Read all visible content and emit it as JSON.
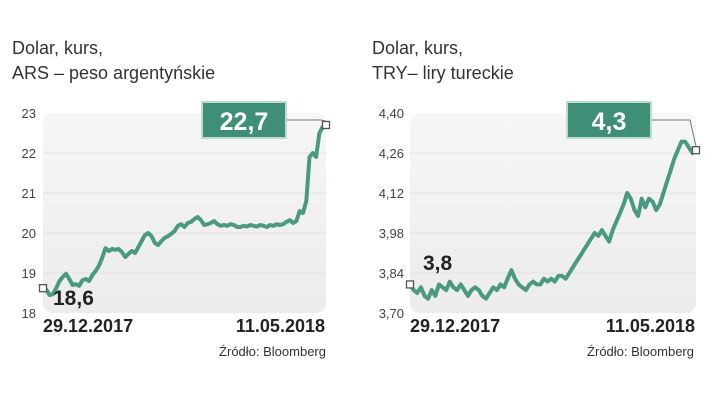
{
  "colors": {
    "line": "#4a9a82",
    "callout": "#3f8f78",
    "plot_bg_top": "#f6f6f6",
    "plot_bg_bottom": "#ececec"
  },
  "chart_data": [
    {
      "type": "line",
      "title_line1": "Dolar, kurs,",
      "title_line2": "ARS – peso argentyńskie",
      "source": "Źródło: Bloomberg",
      "yticks": [
        "18",
        "19",
        "20",
        "21",
        "22",
        "23"
      ],
      "ylim": [
        18,
        23
      ],
      "xlabel_start": "29.12.2017",
      "xlabel_end": "11.05.2018",
      "start_label": "18,6",
      "end_label": "22,7",
      "start_value": 18.6,
      "end_value": 22.7,
      "series": [
        {
          "values": [
            18.62,
            18.58,
            18.45,
            18.47,
            18.62,
            18.8,
            18.9,
            18.98,
            18.85,
            18.7,
            18.72,
            18.68,
            18.82,
            18.85,
            18.8,
            18.95,
            19.05,
            19.18,
            19.38,
            19.62,
            19.55,
            19.6,
            19.58,
            19.6,
            19.52,
            19.4,
            19.48,
            19.55,
            19.5,
            19.65,
            19.8,
            19.95,
            20.0,
            19.92,
            19.75,
            19.7,
            19.8,
            19.88,
            19.92,
            19.98,
            20.05,
            20.18,
            20.22,
            20.15,
            20.25,
            20.28,
            20.35,
            20.4,
            20.32,
            20.2,
            20.22,
            20.25,
            20.3,
            20.22,
            20.18,
            20.2,
            20.18,
            20.22,
            20.2,
            20.15,
            20.15,
            20.18,
            20.16,
            20.2,
            20.18,
            20.16,
            20.2,
            20.18,
            20.15,
            20.2,
            20.18,
            20.22,
            20.2,
            20.22,
            20.28,
            20.32,
            20.25,
            20.3,
            20.55,
            20.5,
            20.8,
            21.9,
            22.0,
            21.9,
            22.5,
            22.65,
            22.7
          ]
        }
      ]
    },
    {
      "type": "line",
      "title_line1": "Dolar, kurs,",
      "title_line2": "TRY– liry tureckie",
      "source": "Źródło: Bloomberg",
      "yticks": [
        "3,70",
        "3,84",
        "3,98",
        "4,12",
        "4,26",
        "4,40"
      ],
      "ylim": [
        3.7,
        4.4
      ],
      "xlabel_start": "29.12.2017",
      "xlabel_end": "11.05.2018",
      "start_label": "3,8",
      "end_label": "4,3",
      "start_value": 3.8,
      "end_value": 4.3,
      "series": [
        {
          "values": [
            3.8,
            3.78,
            3.77,
            3.79,
            3.76,
            3.75,
            3.78,
            3.76,
            3.8,
            3.79,
            3.78,
            3.81,
            3.79,
            3.78,
            3.8,
            3.78,
            3.76,
            3.78,
            3.79,
            3.78,
            3.76,
            3.75,
            3.77,
            3.79,
            3.78,
            3.8,
            3.79,
            3.82,
            3.85,
            3.82,
            3.8,
            3.79,
            3.78,
            3.8,
            3.81,
            3.8,
            3.8,
            3.82,
            3.81,
            3.82,
            3.81,
            3.83,
            3.83,
            3.82,
            3.84,
            3.86,
            3.88,
            3.9,
            3.92,
            3.94,
            3.96,
            3.98,
            3.97,
            3.99,
            3.97,
            3.95,
            3.99,
            4.02,
            4.05,
            4.08,
            4.12,
            4.1,
            4.06,
            4.04,
            4.1,
            4.07,
            4.1,
            4.09,
            4.06,
            4.08,
            4.12,
            4.16,
            4.2,
            4.24,
            4.27,
            4.3,
            4.3,
            4.28,
            4.26,
            4.27
          ]
        }
      ]
    }
  ]
}
